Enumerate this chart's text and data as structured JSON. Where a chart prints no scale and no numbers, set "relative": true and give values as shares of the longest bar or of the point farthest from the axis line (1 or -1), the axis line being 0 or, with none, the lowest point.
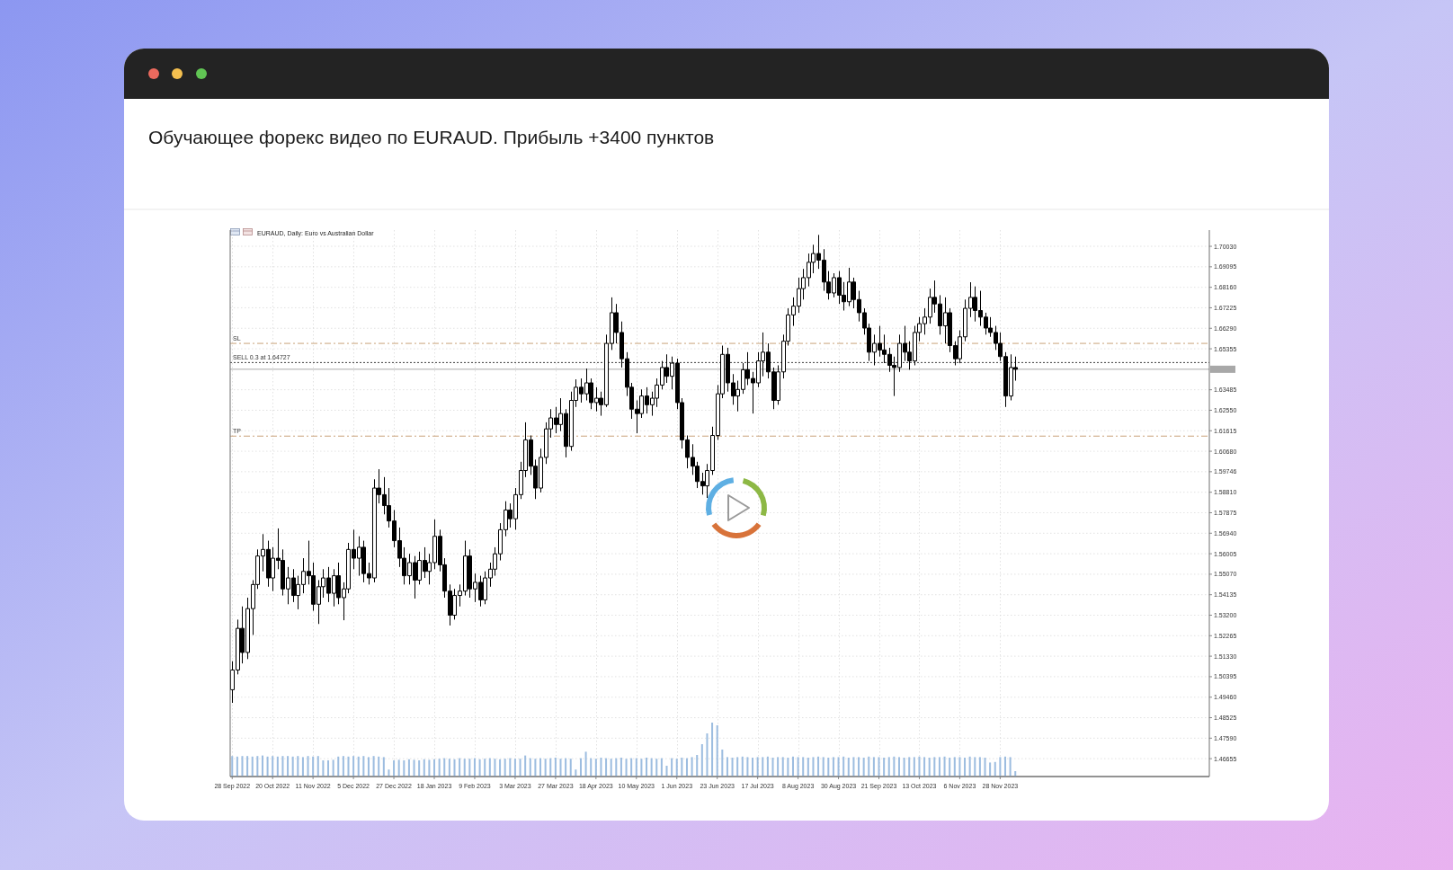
{
  "chart_data": [
    {
      "type": "candlestick",
      "title": "Обучающее форекс видео по EURAUD. Прибыль +3400 пунктов",
      "subtitle": "EURAUD, Daily:  Euro vs Australian Dollar",
      "categories": [
        "28 Sep 2022",
        null,
        null,
        null,
        null,
        null,
        null,
        null,
        "20 Oct 2022",
        null,
        null,
        null,
        null,
        null,
        null,
        null,
        "11 Nov 2022",
        null,
        null,
        null,
        null,
        null,
        null,
        null,
        "5 Dec 2022",
        null,
        null,
        null,
        null,
        null,
        null,
        null,
        "27 Dec 2022",
        null,
        null,
        null,
        null,
        null,
        null,
        null,
        "18 Jan 2023",
        null,
        null,
        null,
        null,
        null,
        null,
        null,
        "9 Feb 2023",
        null,
        null,
        null,
        null,
        null,
        null,
        null,
        "3 Mar 2023",
        null,
        null,
        null,
        null,
        null,
        null,
        null,
        "27 Mar 2023",
        null,
        null,
        null,
        null,
        null,
        null,
        null,
        "18 Apr 2023",
        null,
        null,
        null,
        null,
        null,
        null,
        null,
        "10 May 2023",
        null,
        null,
        null,
        null,
        null,
        null,
        null,
        "1 Jun 2023",
        null,
        null,
        null,
        null,
        null,
        null,
        null,
        "23 Jun 2023",
        null,
        null,
        null,
        null,
        null,
        null,
        null,
        "17 Jul 2023",
        null,
        null,
        null,
        null,
        null,
        null,
        null,
        "8 Aug 2023",
        null,
        null,
        null,
        null,
        null,
        null,
        null,
        "30 Aug 2023",
        null,
        null,
        null,
        null,
        null,
        null,
        null,
        "21 Sep 2023",
        null,
        null,
        null,
        null,
        null,
        null,
        null,
        "13 Oct 2023",
        null,
        null,
        null,
        null,
        null,
        null,
        null,
        "6 Nov 2023",
        null,
        null,
        null,
        null,
        null,
        null,
        null,
        "28 Nov 2023",
        null,
        null,
        null,
        null,
        null,
        null,
        null,
        null,
        null,
        null,
        null,
        null,
        null,
        null,
        null,
        null,
        null,
        null,
        null,
        null,
        null,
        null,
        null,
        null,
        null,
        null,
        null,
        null,
        null,
        null,
        null,
        null,
        null,
        null,
        null,
        null,
        null,
        null,
        null,
        null,
        null
      ],
      "ohlc": [
        [
          1.498,
          1.511,
          1.492,
          1.507
        ],
        [
          1.507,
          1.53,
          1.505,
          1.526
        ],
        [
          1.526,
          1.536,
          1.51,
          1.515
        ],
        [
          1.515,
          1.54,
          1.512,
          1.535
        ],
        [
          1.535,
          1.548,
          1.523,
          1.546
        ],
        [
          1.546,
          1.562,
          1.544,
          1.559
        ],
        [
          1.559,
          1.569,
          1.552,
          1.562
        ],
        [
          1.562,
          1.566,
          1.545,
          1.549
        ],
        [
          1.549,
          1.563,
          1.543,
          1.558
        ],
        [
          1.558,
          1.5716,
          1.553,
          1.557
        ],
        [
          1.557,
          1.562,
          1.541,
          1.544
        ],
        [
          1.544,
          1.554,
          1.537,
          1.549
        ],
        [
          1.549,
          1.553,
          1.538,
          1.541
        ],
        [
          1.541,
          1.55,
          1.5347,
          1.546
        ],
        [
          1.546,
          1.558,
          1.542,
          1.552
        ],
        [
          1.552,
          1.566,
          1.546,
          1.55
        ],
        [
          1.55,
          1.556,
          1.534,
          1.537
        ],
        [
          1.537,
          1.548,
          1.528,
          1.545
        ],
        [
          1.545,
          1.553,
          1.54,
          1.549
        ],
        [
          1.549,
          1.554,
          1.538,
          1.542
        ],
        [
          1.542,
          1.553,
          1.536,
          1.55
        ],
        [
          1.55,
          1.556,
          1.537,
          1.54
        ],
        [
          1.54,
          1.547,
          1.5297,
          1.544
        ],
        [
          1.544,
          1.565,
          1.542,
          1.562
        ],
        [
          1.562,
          1.571,
          1.553,
          1.558
        ],
        [
          1.558,
          1.568,
          1.55,
          1.563
        ],
        [
          1.563,
          1.566,
          1.547,
          1.551
        ],
        [
          1.551,
          1.556,
          1.546,
          1.549
        ],
        [
          1.549,
          1.594,
          1.547,
          1.59
        ],
        [
          1.59,
          1.5986,
          1.583,
          1.587
        ],
        [
          1.587,
          1.595,
          1.578,
          1.582
        ],
        [
          1.582,
          1.59,
          1.572,
          1.575
        ],
        [
          1.575,
          1.58,
          1.563,
          1.566
        ],
        [
          1.566,
          1.572,
          1.554,
          1.558
        ],
        [
          1.558,
          1.563,
          1.546,
          1.55
        ],
        [
          1.55,
          1.56,
          1.546,
          1.556
        ],
        [
          1.556,
          1.559,
          1.5396,
          1.548
        ],
        [
          1.548,
          1.561,
          1.546,
          1.557
        ],
        [
          1.557,
          1.563,
          1.549,
          1.552
        ],
        [
          1.552,
          1.56,
          1.546,
          1.556
        ],
        [
          1.556,
          1.5757,
          1.553,
          1.568
        ],
        [
          1.568,
          1.571,
          1.552,
          1.555
        ],
        [
          1.555,
          1.558,
          1.54,
          1.543
        ],
        [
          1.543,
          1.546,
          1.5273,
          1.532
        ],
        [
          1.532,
          1.544,
          1.53,
          1.541
        ],
        [
          1.541,
          1.546,
          1.536,
          1.543
        ],
        [
          1.543,
          1.566,
          1.541,
          1.559
        ],
        [
          1.559,
          1.562,
          1.54,
          1.544
        ],
        [
          1.544,
          1.551,
          1.538,
          1.547
        ],
        [
          1.547,
          1.55,
          1.536,
          1.539
        ],
        [
          1.539,
          1.552,
          1.537,
          1.549
        ],
        [
          1.549,
          1.556,
          1.545,
          1.553
        ],
        [
          1.553,
          1.563,
          1.55,
          1.56
        ],
        [
          1.56,
          1.574,
          1.557,
          1.571
        ],
        [
          1.571,
          1.584,
          1.568,
          1.58
        ],
        [
          1.58,
          1.583,
          1.572,
          1.576
        ],
        [
          1.576,
          1.59,
          1.571,
          1.587
        ],
        [
          1.587,
          1.602,
          1.585,
          1.598
        ],
        [
          1.598,
          1.62,
          1.595,
          1.612
        ],
        [
          1.612,
          1.614,
          1.596,
          1.6
        ],
        [
          1.6,
          1.603,
          1.585,
          1.59
        ],
        [
          1.59,
          1.608,
          1.588,
          1.604
        ],
        [
          1.604,
          1.62,
          1.601,
          1.617
        ],
        [
          1.617,
          1.626,
          1.613,
          1.622
        ],
        [
          1.622,
          1.627,
          1.615,
          1.619
        ],
        [
          1.619,
          1.631,
          1.616,
          1.624
        ],
        [
          1.624,
          1.626,
          1.604,
          1.609
        ],
        [
          1.609,
          1.634,
          1.607,
          1.63
        ],
        [
          1.63,
          1.6396,
          1.627,
          1.636
        ],
        [
          1.636,
          1.64,
          1.629,
          1.633
        ],
        [
          1.633,
          1.6445,
          1.63,
          1.638
        ],
        [
          1.638,
          1.64,
          1.626,
          1.629
        ],
        [
          1.629,
          1.636,
          1.625,
          1.631
        ],
        [
          1.631,
          1.634,
          1.623,
          1.628
        ],
        [
          1.628,
          1.66,
          1.627,
          1.656
        ],
        [
          1.656,
          1.677,
          1.653,
          1.67
        ],
        [
          1.67,
          1.674,
          1.656,
          1.661
        ],
        [
          1.661,
          1.666,
          1.645,
          1.649
        ],
        [
          1.649,
          1.652,
          1.632,
          1.636
        ],
        [
          1.636,
          1.638,
          1.6216,
          1.626
        ],
        [
          1.626,
          1.63,
          1.615,
          1.624
        ],
        [
          1.624,
          1.635,
          1.622,
          1.632
        ],
        [
          1.632,
          1.636,
          1.624,
          1.628
        ],
        [
          1.628,
          1.634,
          1.623,
          1.631
        ],
        [
          1.631,
          1.64,
          1.627,
          1.637
        ],
        [
          1.637,
          1.648,
          1.635,
          1.645
        ],
        [
          1.645,
          1.651,
          1.638,
          1.641
        ],
        [
          1.641,
          1.65,
          1.635,
          1.647
        ],
        [
          1.647,
          1.649,
          1.626,
          1.629
        ],
        [
          1.629,
          1.631,
          1.608,
          1.612
        ],
        [
          1.612,
          1.614,
          1.599,
          1.604
        ],
        [
          1.604,
          1.61,
          1.596,
          1.6
        ],
        [
          1.6,
          1.602,
          1.59,
          1.593
        ],
        [
          1.593,
          1.597,
          1.587,
          1.591
        ],
        [
          1.591,
          1.601,
          1.5855,
          1.598
        ],
        [
          1.598,
          1.618,
          1.596,
          1.614
        ],
        [
          1.614,
          1.637,
          1.612,
          1.633
        ],
        [
          1.633,
          1.655,
          1.631,
          1.651
        ],
        [
          1.651,
          1.654,
          1.634,
          1.638
        ],
        [
          1.638,
          1.642,
          1.628,
          1.632
        ],
        [
          1.632,
          1.639,
          1.625,
          1.635
        ],
        [
          1.635,
          1.647,
          1.633,
          1.644
        ],
        [
          1.644,
          1.652,
          1.637,
          1.64
        ],
        [
          1.64,
          1.643,
          1.624,
          1.638
        ],
        [
          1.638,
          1.652,
          1.636,
          1.648
        ],
        [
          1.648,
          1.661,
          1.641,
          1.652
        ],
        [
          1.652,
          1.656,
          1.64,
          1.643
        ],
        [
          1.643,
          1.645,
          1.626,
          1.63
        ],
        [
          1.63,
          1.646,
          1.628,
          1.643
        ],
        [
          1.643,
          1.66,
          1.64,
          1.657
        ],
        [
          1.657,
          1.672,
          1.655,
          1.669
        ],
        [
          1.669,
          1.677,
          1.664,
          1.673
        ],
        [
          1.673,
          1.686,
          1.67,
          1.681
        ],
        [
          1.681,
          1.69,
          1.676,
          1.686
        ],
        [
          1.686,
          1.697,
          1.682,
          1.693
        ],
        [
          1.693,
          1.701,
          1.688,
          1.697
        ],
        [
          1.697,
          1.7055,
          1.69,
          1.694
        ],
        [
          1.694,
          1.699,
          1.68,
          1.684
        ],
        [
          1.684,
          1.689,
          1.676,
          1.679
        ],
        [
          1.679,
          1.688,
          1.677,
          1.686
        ],
        [
          1.686,
          1.689,
          1.674,
          1.678
        ],
        [
          1.678,
          1.684,
          1.671,
          1.675
        ],
        [
          1.675,
          1.6905,
          1.673,
          1.684
        ],
        [
          1.684,
          1.686,
          1.672,
          1.676
        ],
        [
          1.676,
          1.68,
          1.666,
          1.67
        ],
        [
          1.67,
          1.672,
          1.66,
          1.663
        ],
        [
          1.663,
          1.665,
          1.648,
          1.652
        ],
        [
          1.652,
          1.66,
          1.646,
          1.656
        ],
        [
          1.656,
          1.664,
          1.65,
          1.653
        ],
        [
          1.653,
          1.66,
          1.647,
          1.651
        ],
        [
          1.651,
          1.654,
          1.643,
          1.646
        ],
        [
          1.646,
          1.65,
          1.632,
          1.645
        ],
        [
          1.645,
          1.66,
          1.643,
          1.656
        ],
        [
          1.656,
          1.664,
          1.648,
          1.652
        ],
        [
          1.652,
          1.657,
          1.644,
          1.648
        ],
        [
          1.648,
          1.664,
          1.646,
          1.661
        ],
        [
          1.661,
          1.668,
          1.657,
          1.665
        ],
        [
          1.665,
          1.672,
          1.66,
          1.668
        ],
        [
          1.668,
          1.681,
          1.665,
          1.677
        ],
        [
          1.677,
          1.6847,
          1.67,
          1.674
        ],
        [
          1.674,
          1.678,
          1.66,
          1.664
        ],
        [
          1.664,
          1.677,
          1.656,
          1.67
        ],
        [
          1.67,
          1.672,
          1.652,
          1.655
        ],
        [
          1.655,
          1.657,
          1.646,
          1.649
        ],
        [
          1.649,
          1.662,
          1.647,
          1.659
        ],
        [
          1.659,
          1.676,
          1.657,
          1.672
        ],
        [
          1.672,
          1.6839,
          1.668,
          1.677
        ],
        [
          1.677,
          1.682,
          1.666,
          1.671
        ],
        [
          1.671,
          1.68,
          1.664,
          1.668
        ],
        [
          1.668,
          1.67,
          1.66,
          1.663
        ],
        [
          1.663,
          1.668,
          1.659,
          1.661
        ],
        [
          1.661,
          1.664,
          1.653,
          1.656
        ],
        [
          1.656,
          1.661,
          1.648,
          1.65
        ],
        [
          1.65,
          1.652,
          1.627,
          1.632
        ],
        [
          1.632,
          1.651,
          1.63,
          1.645
        ],
        [
          1.645,
          1.65,
          1.639,
          1.6442
        ],
        null,
        null,
        null,
        null,
        null,
        null,
        null,
        null,
        null,
        null,
        null,
        null,
        null,
        null,
        null,
        null,
        null,
        null,
        null,
        null,
        null,
        null,
        null,
        null,
        null,
        null,
        null,
        null,
        null,
        null,
        null,
        null,
        null,
        null,
        null,
        null,
        null,
        null
      ],
      "color": "#000000",
      "ylim": [
        1.4584,
        1.7077
      ],
      "yticks": [
        {
          "value": 1.7003,
          "label": "1.70030"
        },
        {
          "value": 1.69095,
          "label": "1.69095"
        },
        {
          "value": 1.6816,
          "label": "1.68160"
        },
        {
          "value": 1.67225,
          "label": "1.67225"
        },
        {
          "value": 1.6629,
          "label": "1.66290"
        },
        {
          "value": 1.65355,
          "label": "1.65355"
        },
        {
          "value": 1.63485,
          "label": "1.63485"
        },
        {
          "value": 1.6255,
          "label": "1.62550"
        },
        {
          "value": 1.61615,
          "label": "1.61615"
        },
        {
          "value": 1.6068,
          "label": "1.60680"
        },
        {
          "value": 1.59746,
          "label": "1.59746"
        },
        {
          "value": 1.5881,
          "label": "1.58810"
        },
        {
          "value": 1.57875,
          "label": "1.57875"
        },
        {
          "value": 1.5694,
          "label": "1.56940"
        },
        {
          "value": 1.56005,
          "label": "1.56005"
        },
        {
          "value": 1.5507,
          "label": "1.55070"
        },
        {
          "value": 1.54135,
          "label": "1.54135"
        },
        {
          "value": 1.532,
          "label": "1.53200"
        },
        {
          "value": 1.52265,
          "label": "1.52265"
        },
        {
          "value": 1.5133,
          "label": "1.51330"
        },
        {
          "value": 1.50395,
          "label": "1.50395"
        },
        {
          "value": 1.4946,
          "label": "1.49460"
        },
        {
          "value": 1.48525,
          "label": "1.48525"
        },
        {
          "value": 1.4759,
          "label": "1.47590"
        },
        {
          "value": 1.46655,
          "label": "1.46655"
        }
      ],
      "grid": true,
      "ref_lines": [
        {
          "axis": "y",
          "value": 1.656,
          "label": "SL",
          "color": "#c9a27a",
          "line_style": "dashed"
        },
        {
          "axis": "y",
          "value": 1.64727,
          "label": "SELL 0.3 at 1.64727",
          "color": "#3c3c3c",
          "line_style": "dotted"
        },
        {
          "axis": "y",
          "value": 1.6442,
          "color": "#a8a8a8",
          "line_style": "solid"
        },
        {
          "axis": "y",
          "value": 1.6137,
          "label": "TP",
          "color": "#c9a27a",
          "line_style": "dashed"
        }
      ]
    },
    {
      "type": "bar",
      "relative": true,
      "color": "#9dbde0",
      "categories": [
        null,
        null,
        null,
        null,
        null,
        null,
        null,
        null,
        null,
        null,
        null,
        null,
        null,
        null,
        null,
        null,
        null,
        null,
        null,
        null,
        null,
        null,
        null,
        null,
        null,
        null,
        null,
        null,
        null,
        null,
        null,
        null,
        null,
        null,
        null,
        null,
        null,
        null,
        null,
        null,
        null,
        null,
        null,
        null,
        null,
        null,
        null,
        null,
        null,
        null,
        null,
        null,
        null,
        null,
        null,
        null,
        null,
        null,
        null,
        null,
        null,
        null,
        null,
        null,
        null,
        null,
        null,
        null,
        null,
        null,
        null,
        null,
        null,
        null,
        null,
        null,
        null,
        null,
        null,
        null,
        null,
        null,
        null,
        null,
        null,
        null,
        null,
        null,
        null,
        null,
        null,
        null,
        null,
        null,
        null,
        null,
        null,
        null,
        null,
        null,
        null,
        null,
        null,
        null,
        null,
        null,
        null,
        null,
        null,
        null,
        null,
        null,
        null,
        null,
        null,
        null,
        null,
        null,
        null,
        null,
        null,
        null,
        null,
        null,
        null,
        null,
        null,
        null,
        null,
        null,
        null,
        null,
        null,
        null,
        null,
        null,
        null,
        null,
        null,
        null,
        null,
        null,
        null,
        null,
        null,
        null,
        null,
        null,
        null,
        null,
        null,
        null,
        null,
        null,
        null,
        null,
        null,
        null,
        null,
        null,
        null,
        null,
        null,
        null,
        null,
        null,
        null,
        null,
        null,
        null,
        null,
        null,
        null,
        null,
        null,
        null,
        null,
        null,
        null,
        null,
        null,
        null,
        null,
        null,
        null,
        null,
        null,
        null,
        null,
        null,
        null,
        null,
        null,
        null
      ],
      "values": [
        0.38,
        0.37,
        0.38,
        0.38,
        0.37,
        0.38,
        0.39,
        0.37,
        0.38,
        0.37,
        0.38,
        0.38,
        0.37,
        0.38,
        0.36,
        0.38,
        0.37,
        0.38,
        0.3,
        0.3,
        0.31,
        0.37,
        0.38,
        0.37,
        0.38,
        0.37,
        0.38,
        0.36,
        0.38,
        0.37,
        0.36,
        0.13,
        0.3,
        0.31,
        0.3,
        0.32,
        0.31,
        0.3,
        0.32,
        0.31,
        0.32,
        0.33,
        0.34,
        0.33,
        0.32,
        0.34,
        0.33,
        0.33,
        0.34,
        0.32,
        0.33,
        0.34,
        0.33,
        0.32,
        0.33,
        0.34,
        0.33,
        0.33,
        0.39,
        0.34,
        0.33,
        0.34,
        0.33,
        0.34,
        0.35,
        0.33,
        0.34,
        0.33,
        0.13,
        0.34,
        0.46,
        0.34,
        0.33,
        0.35,
        0.34,
        0.33,
        0.34,
        0.35,
        0.33,
        0.34,
        0.34,
        0.33,
        0.35,
        0.34,
        0.33,
        0.34,
        0.2,
        0.34,
        0.33,
        0.35,
        0.34,
        0.36,
        0.4,
        0.6,
        0.8,
        1,
        0.95,
        0.5,
        0.36,
        0.35,
        0.36,
        0.37,
        0.36,
        0.35,
        0.36,
        0.36,
        0.37,
        0.35,
        0.36,
        0.36,
        0.35,
        0.37,
        0.36,
        0.36,
        0.35,
        0.36,
        0.37,
        0.36,
        0.35,
        0.36,
        0.36,
        0.37,
        0.35,
        0.36,
        0.36,
        0.35,
        0.37,
        0.36,
        0.36,
        0.35,
        0.36,
        0.37,
        0.36,
        0.35,
        0.36,
        0.36,
        0.37,
        0.36,
        0.35,
        0.36,
        0.36,
        0.37,
        0.35,
        0.36,
        0.36,
        0.35,
        0.37,
        0.36,
        0.36,
        0.35,
        0.26,
        0.27,
        0.36,
        0.37,
        0.36,
        0.1,
        null,
        null,
        null,
        null,
        null,
        null,
        null,
        null,
        null,
        null,
        null,
        null,
        null,
        null,
        null,
        null,
        null,
        null,
        null,
        null,
        null,
        null,
        null,
        null,
        null,
        null,
        null,
        null,
        null,
        null,
        null,
        null,
        null,
        null,
        null,
        null,
        null,
        null
      ]
    }
  ]
}
